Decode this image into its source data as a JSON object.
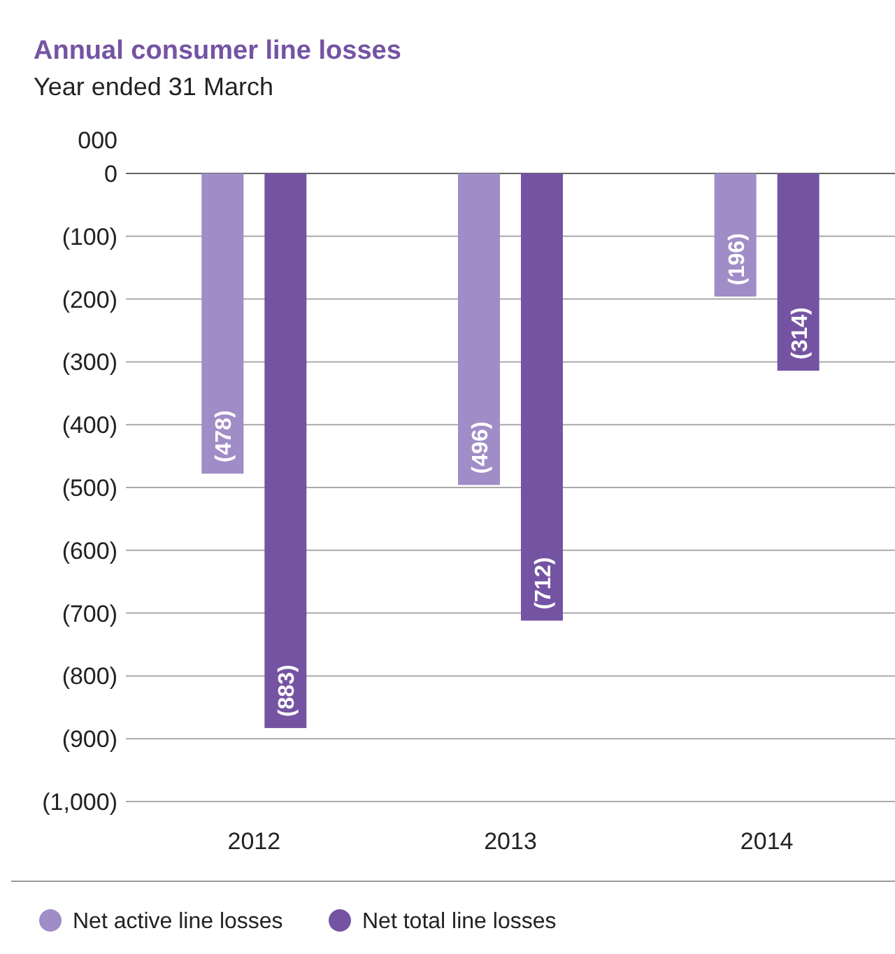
{
  "chart_data": {
    "type": "bar",
    "title": "Annual consumer line losses",
    "subtitle": "Year ended 31 March",
    "ylabel": "000",
    "categories": [
      "2012",
      "2013",
      "2014"
    ],
    "series": [
      {
        "name": "Net active line losses",
        "color": "#a08cc6",
        "values": [
          -478,
          -496,
          -196
        ],
        "value_labels": [
          "(478)",
          "(496)",
          "(196)"
        ]
      },
      {
        "name": "Net total line losses",
        "color": "#7553a3",
        "values": [
          -883,
          -712,
          -314
        ],
        "value_labels": [
          "(883)",
          "(712)",
          "(314)"
        ]
      }
    ],
    "ylim": [
      -1000,
      0
    ],
    "yticks": [
      0,
      {
        "value": -100,
        "label": "(100)"
      },
      {
        "value": -200,
        "label": "(200)"
      },
      {
        "value": -300,
        "label": "(300)"
      },
      {
        "value": -400,
        "label": "(400)"
      },
      {
        "value": -500,
        "label": "(500)"
      },
      {
        "value": -600,
        "label": "(600)"
      },
      {
        "value": -700,
        "label": "(700)"
      },
      {
        "value": -800,
        "label": "(800)"
      },
      {
        "value": -900,
        "label": "(900)"
      },
      {
        "value": -1000,
        "label": "(1,000)"
      }
    ],
    "grid": "y",
    "legend": "bottom"
  }
}
